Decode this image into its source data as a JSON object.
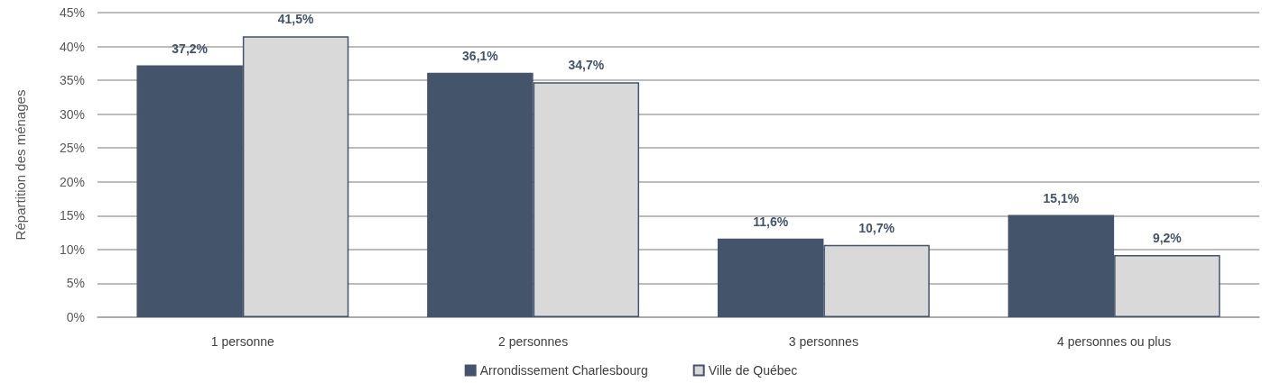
{
  "chart_data": {
    "type": "bar",
    "ylabel": "Répartition des ménages",
    "categories": [
      "1 personne",
      "2 personnes",
      "3 personnes",
      "4 personnes ou plus"
    ],
    "series": [
      {
        "name": "Arrondissement Charlesbourg",
        "color": "#44546a",
        "values": [
          37.2,
          36.1,
          11.6,
          15.1
        ],
        "value_labels": [
          "37,2%",
          "36,1%",
          "11,6%",
          "15,1%"
        ]
      },
      {
        "name": "Ville de Québec",
        "color": "#d9d9d9",
        "values": [
          41.5,
          34.7,
          10.7,
          9.2
        ],
        "value_labels": [
          "41,5%",
          "34,7%",
          "10,7%",
          "9,2%"
        ]
      }
    ],
    "ylim": [
      0,
      45
    ],
    "yticks": [
      {
        "value": 0,
        "label": "0%"
      },
      {
        "value": 5,
        "label": "5%"
      },
      {
        "value": 10,
        "label": "10%"
      },
      {
        "value": 15,
        "label": "15%"
      },
      {
        "value": 20,
        "label": "20%"
      },
      {
        "value": 25,
        "label": "25%"
      },
      {
        "value": 30,
        "label": "30%"
      },
      {
        "value": 35,
        "label": "35%"
      },
      {
        "value": 40,
        "label": "40%"
      },
      {
        "value": 45,
        "label": "45%"
      }
    ],
    "grid": "y",
    "legend": "bottom"
  }
}
